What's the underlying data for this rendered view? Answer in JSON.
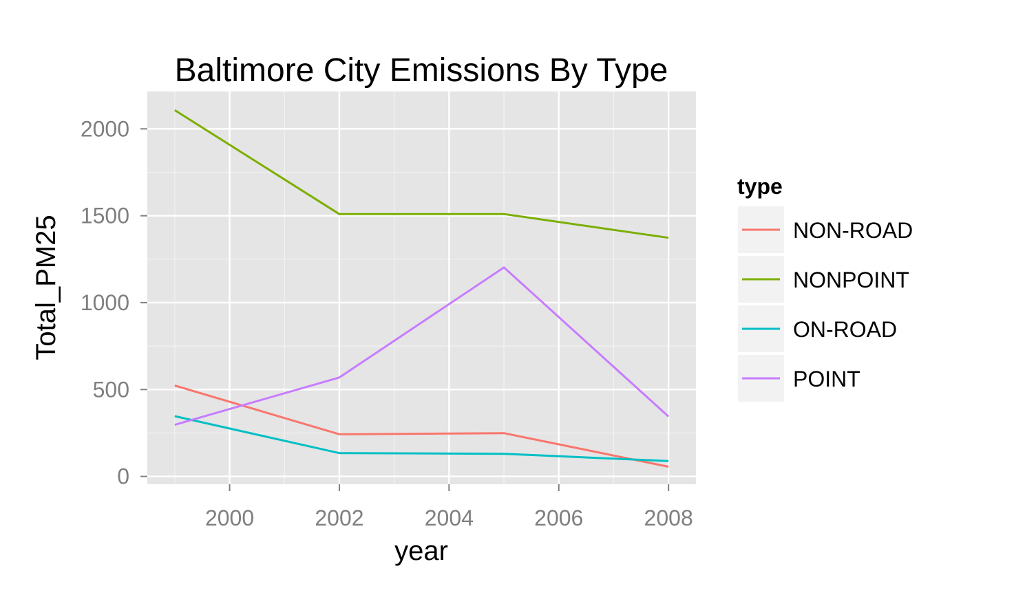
{
  "chart_data": {
    "type": "line",
    "title": "Baltimore City Emissions By Type",
    "xlabel": "year",
    "ylabel": "Total_PM25",
    "x": [
      1999,
      2002,
      2005,
      2008
    ],
    "xlim": [
      1998.5,
      2008.5
    ],
    "ylim": [
      -45,
      2215
    ],
    "x_ticks": [
      2000,
      2002,
      2004,
      2006,
      2008
    ],
    "y_ticks": [
      0,
      500,
      1000,
      1500,
      2000
    ],
    "x_tick_labels": [
      "2000",
      "2002",
      "2004",
      "2006",
      "2008"
    ],
    "y_tick_labels": [
      "0",
      "500",
      "1000",
      "1500",
      "2000"
    ],
    "grid": true,
    "legend": {
      "title": "type",
      "position": "right"
    },
    "series": [
      {
        "name": "NON-ROAD",
        "color": "#F8766D",
        "values": [
          522.94,
          242.85,
          248.93,
          55.82
        ]
      },
      {
        "name": "NONPOINT",
        "color": "#7CAE00",
        "values": [
          2107.63,
          1509.5,
          1509.5,
          1373.21
        ]
      },
      {
        "name": "ON-ROAD",
        "color": "#00BFC4",
        "values": [
          346.82,
          134.31,
          130.43,
          88.28
        ]
      },
      {
        "name": "POINT",
        "color": "#C77CFF",
        "values": [
          296.8,
          569.26,
          1202.49,
          344.98
        ]
      }
    ]
  }
}
